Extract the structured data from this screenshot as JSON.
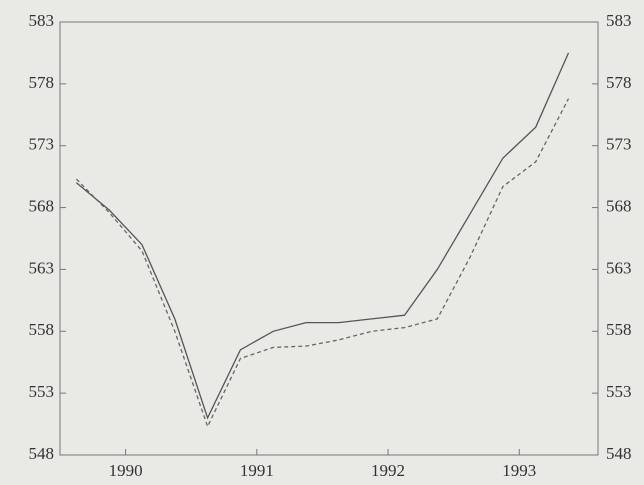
{
  "chart_data": {
    "type": "line",
    "x": [
      1989.625,
      1989.875,
      1990.125,
      1990.375,
      1990.625,
      1990.875,
      1991.125,
      1991.375,
      1991.625,
      1991.875,
      1992.125,
      1992.375,
      1992.625,
      1992.875,
      1993.125,
      1993.375
    ],
    "series": [
      {
        "color": "#555555",
        "values": [
          570,
          567.8,
          565,
          559,
          551,
          556.5,
          558,
          558.7,
          558.7,
          559,
          559.3,
          563,
          567.5,
          572,
          574.5,
          580.5
        ]
      },
      {
        "color": "#666666",
        "values": [
          570.3,
          567.6,
          564.5,
          558,
          550.3,
          555.8,
          556.7,
          556.8,
          557.3,
          558,
          558.3,
          559,
          564,
          569.7,
          571.7,
          576.8
        ],
        "axis": "y2"
      }
    ],
    "xlim": [
      1989.5,
      1993.6
    ],
    "xticks": [
      1990,
      1991,
      1992,
      1993
    ],
    "ylim": [
      548,
      583
    ],
    "yticks": [
      548,
      553,
      558,
      563,
      568,
      573,
      578,
      583
    ],
    "y2lim": [
      548,
      583
    ],
    "y2ticks": [
      548,
      553,
      558,
      563,
      568,
      573,
      578,
      583
    ]
  }
}
